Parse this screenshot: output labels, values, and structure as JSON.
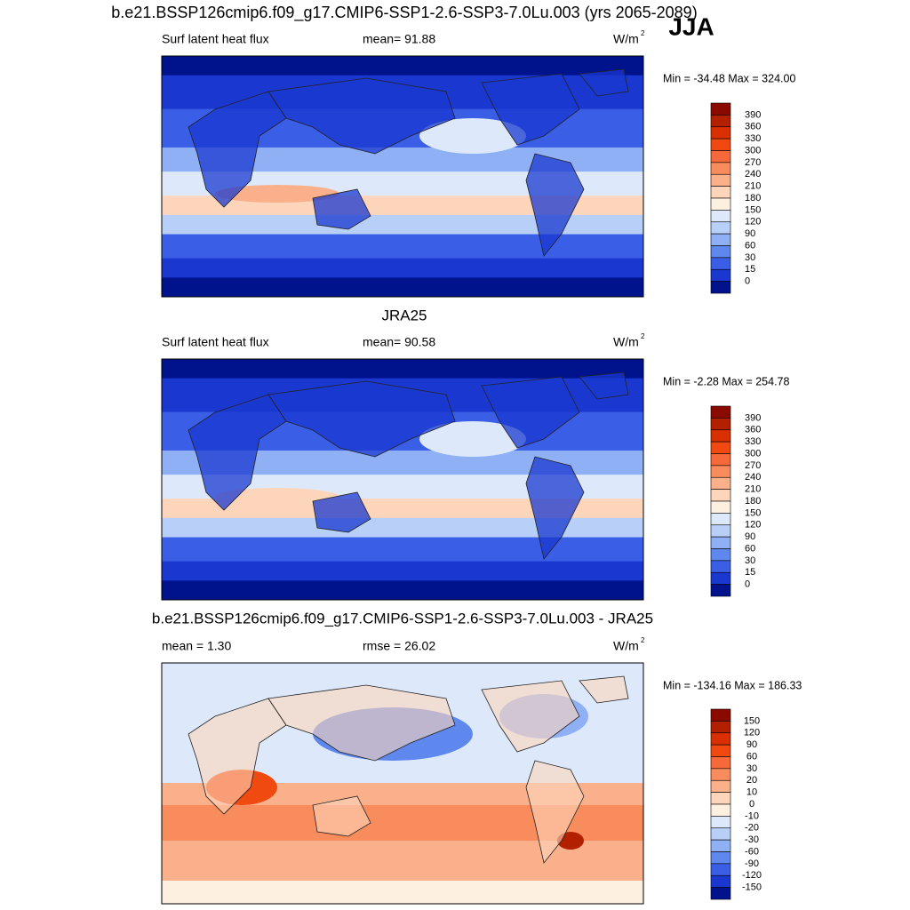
{
  "header": {
    "title": "b.e21.BSSP126cmip6.f09_g17.CMIP6-SSP1-2.6-SSP3-7.0Lu.003 (yrs 2065-2089)",
    "season": "JJA"
  },
  "panels": [
    {
      "left": "Surf latent heat flux",
      "center": "mean=  91.88",
      "unit": "W/m",
      "unit_sup": "2",
      "minmax": "Min = -34.48 Max = 324.00",
      "colorbar": {
        "labels": [
          "390",
          "360",
          "330",
          "300",
          "270",
          "240",
          "210",
          "180",
          "150",
          "120",
          "90",
          "60",
          "30",
          "15",
          "0"
        ]
      }
    },
    {
      "title": "JRA25",
      "left": "Surf latent heat flux",
      "center": "mean=  90.58",
      "unit": "W/m",
      "unit_sup": "2",
      "minmax": "Min =  -2.28 Max = 254.78",
      "colorbar": {
        "labels": [
          "390",
          "360",
          "330",
          "300",
          "270",
          "240",
          "210",
          "180",
          "150",
          "120",
          "90",
          "60",
          "30",
          "15",
          "0"
        ]
      }
    },
    {
      "title": "b.e21.BSSP126cmip6.f09_g17.CMIP6-SSP1-2.6-SSP3-7.0Lu.003 - JRA25",
      "left": "mean =   1.30",
      "center": "rmse =  26.02",
      "unit": "W/m",
      "unit_sup": "2",
      "minmax": "Min = -134.16 Max = 186.33",
      "colorbar": {
        "labels": [
          "150",
          "120",
          "90",
          "60",
          "30",
          "20",
          "10",
          "0",
          "-10",
          "-20",
          "-30",
          "-60",
          "-90",
          "-120",
          "-150"
        ]
      }
    }
  ]
}
